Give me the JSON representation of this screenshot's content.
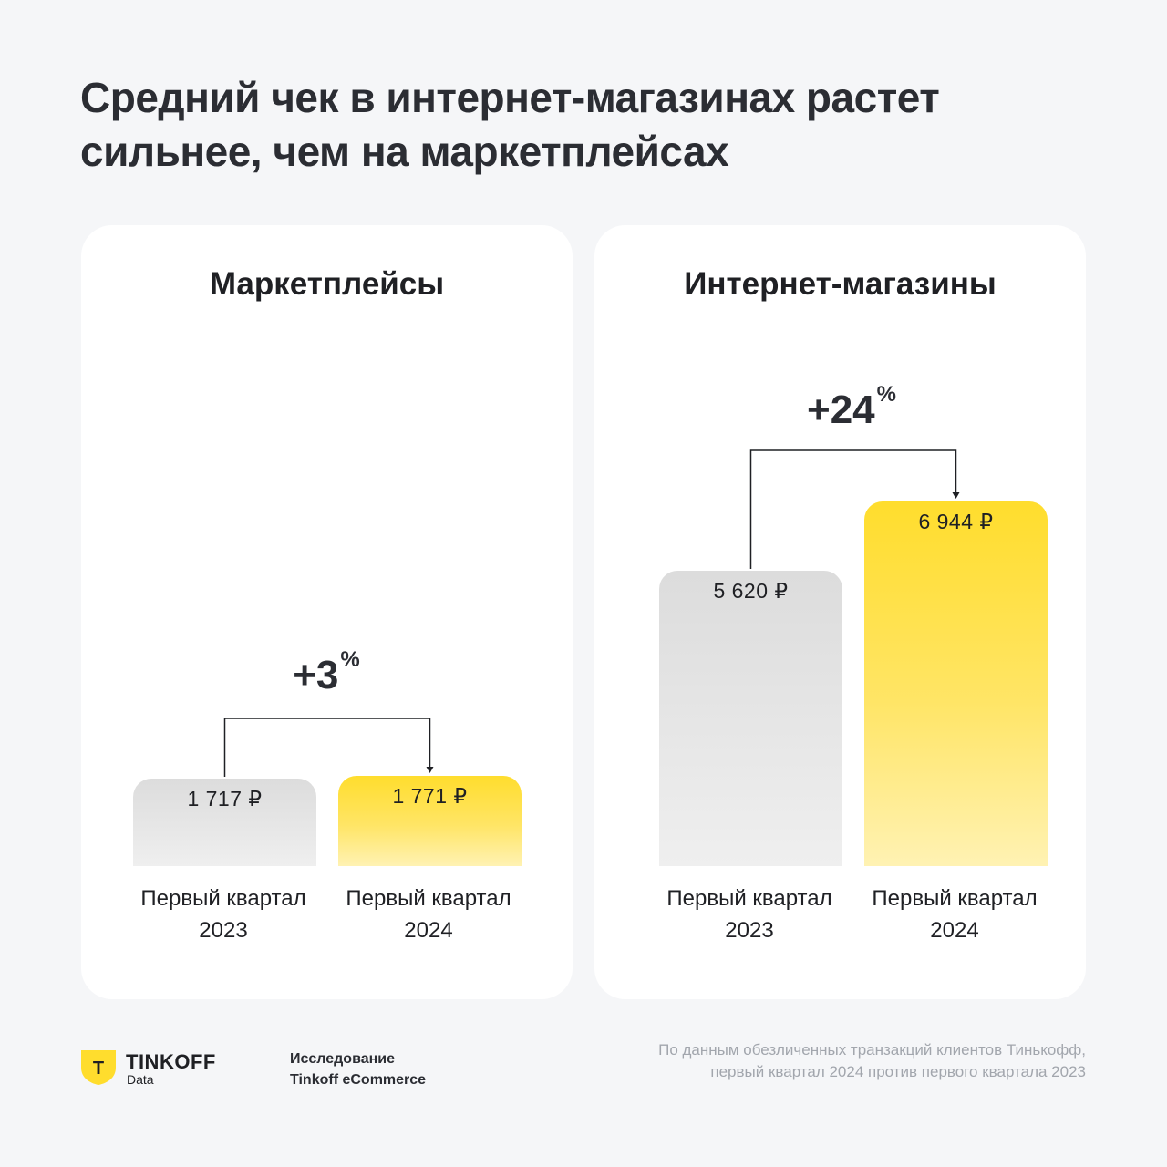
{
  "title": "Средний чек в интернет-магазинах растет сильнее, чем на маркетплейсах",
  "chart_data": [
    {
      "type": "bar",
      "title": "Маркетплейсы",
      "categories": [
        "Первый квартал 2023",
        "Первый квартал 2024"
      ],
      "values": [
        1717,
        1771
      ],
      "value_labels": [
        "1 717 ₽",
        "1 771 ₽"
      ],
      "change": "+3",
      "unit": "%",
      "colors": [
        "#dcdcdc",
        "#ffdd2d"
      ]
    },
    {
      "type": "bar",
      "title": "Интернет-магазины",
      "categories": [
        "Первый квартал 2023",
        "Первый квартал 2024"
      ],
      "values": [
        5620,
        6944
      ],
      "value_labels": [
        "5 620 ₽",
        "6 944 ₽"
      ],
      "change": "+24",
      "unit": "%",
      "colors": [
        "#dcdcdc",
        "#ffdd2d"
      ]
    }
  ],
  "labels": {
    "cat_line1": "Первый квартал",
    "year_a": "2023",
    "year_b": "2024"
  },
  "footer": {
    "brand": "TINKOFF",
    "brand_sub": "Data",
    "logo_letter": "Т",
    "study_line1": "Исследование",
    "study_line2": "Tinkoff eCommerce",
    "source_line1": "По данным обезличенных транзакций клиентов Тинькофф,",
    "source_line2": "первый квартал 2024 против первого квартала 2023"
  },
  "colors": {
    "accent": "#ffdd2d",
    "text": "#2b2d33",
    "muted": "#a2a6ad",
    "background": "#f5f6f8"
  }
}
